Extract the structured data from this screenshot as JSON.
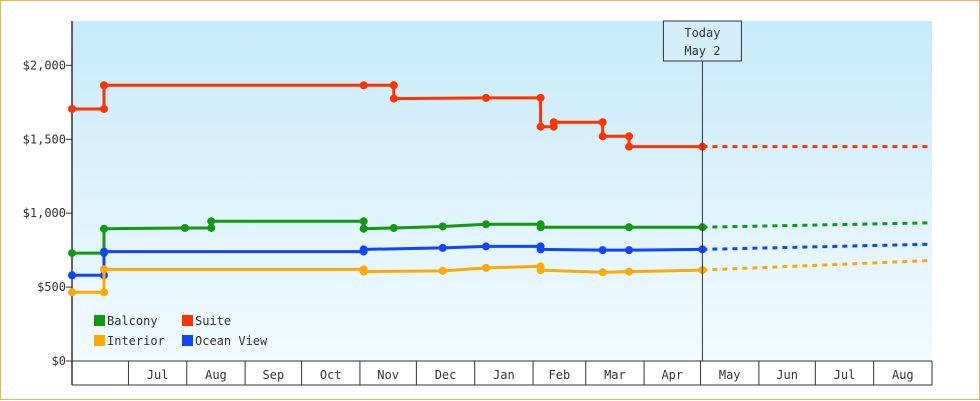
{
  "chart_data": {
    "type": "line",
    "step": true,
    "ylim": [
      0,
      2300
    ],
    "yticks": [
      {
        "value": 0,
        "label": "$0"
      },
      {
        "value": 500,
        "label": "$500"
      },
      {
        "value": 1000,
        "label": "$1,000"
      },
      {
        "value": 1500,
        "label": "$1,500"
      },
      {
        "value": 2000,
        "label": "$2,000"
      }
    ],
    "xlim": [
      "2024-06-01",
      "2025-09-01"
    ],
    "months": [
      {
        "label": "Jul",
        "start": "2024-07-01",
        "end": "2024-08-01"
      },
      {
        "label": "Aug",
        "start": "2024-08-01",
        "end": "2024-09-01"
      },
      {
        "label": "Sep",
        "start": "2024-09-01",
        "end": "2024-10-01"
      },
      {
        "label": "Oct",
        "start": "2024-10-01",
        "end": "2024-11-01"
      },
      {
        "label": "Nov",
        "start": "2024-11-01",
        "end": "2024-12-01"
      },
      {
        "label": "Dec",
        "start": "2024-12-01",
        "end": "2025-01-01"
      },
      {
        "label": "Jan",
        "start": "2025-01-01",
        "end": "2025-02-01"
      },
      {
        "label": "Feb",
        "start": "2025-02-01",
        "end": "2025-03-01"
      },
      {
        "label": "Mar",
        "start": "2025-03-01",
        "end": "2025-04-01"
      },
      {
        "label": "Apr",
        "start": "2025-04-01",
        "end": "2025-05-01"
      },
      {
        "label": "May",
        "start": "2025-05-01",
        "end": "2025-06-01"
      },
      {
        "label": "Jun",
        "start": "2025-06-01",
        "end": "2025-07-01"
      },
      {
        "label": "Jul",
        "start": "2025-07-01",
        "end": "2025-08-01"
      },
      {
        "label": "Aug",
        "start": "2025-08-01",
        "end": "2025-09-01"
      }
    ],
    "grid": false,
    "legend_position": "bottom-left",
    "today": {
      "line1": "Today",
      "line2": "May 2",
      "date": "2025-05-02"
    },
    "series": [
      {
        "name": "Suite",
        "color": "#ff3300",
        "points": [
          [
            "2024-06-01",
            1705
          ],
          [
            "2024-06-18",
            1705
          ],
          [
            "2024-06-18",
            1865
          ],
          [
            "2024-11-03",
            1865
          ],
          [
            "2024-11-19",
            1865
          ],
          [
            "2024-11-19",
            1775
          ],
          [
            "2025-01-07",
            1780
          ],
          [
            "2025-02-05",
            1780
          ],
          [
            "2025-02-05",
            1585
          ],
          [
            "2025-02-12",
            1585
          ],
          [
            "2025-02-12",
            1615
          ],
          [
            "2025-03-10",
            1615
          ],
          [
            "2025-03-10",
            1520
          ],
          [
            "2025-03-24",
            1520
          ],
          [
            "2025-03-24",
            1450
          ],
          [
            "2025-05-02",
            1450
          ]
        ],
        "forecast": [
          [
            "2025-05-02",
            1450
          ],
          [
            "2025-09-01",
            1450
          ]
        ]
      },
      {
        "name": "Balcony",
        "color": "#119911",
        "points": [
          [
            "2024-06-01",
            730
          ],
          [
            "2024-06-18",
            730
          ],
          [
            "2024-06-18",
            895
          ],
          [
            "2024-07-31",
            900
          ],
          [
            "2024-08-14",
            900
          ],
          [
            "2024-08-14",
            945
          ],
          [
            "2024-11-03",
            945
          ],
          [
            "2024-11-03",
            895
          ],
          [
            "2024-11-19",
            900
          ],
          [
            "2024-12-15",
            910
          ],
          [
            "2025-01-07",
            925
          ],
          [
            "2025-02-05",
            925
          ],
          [
            "2025-02-05",
            905
          ],
          [
            "2025-03-24",
            905
          ],
          [
            "2025-05-02",
            905
          ]
        ],
        "forecast": [
          [
            "2025-05-02",
            905
          ],
          [
            "2025-09-01",
            935
          ]
        ]
      },
      {
        "name": "Ocean View",
        "color": "#1144ff",
        "points": [
          [
            "2024-06-01",
            580
          ],
          [
            "2024-06-18",
            580
          ],
          [
            "2024-06-18",
            740
          ],
          [
            "2024-11-03",
            740
          ],
          [
            "2024-11-03",
            755
          ],
          [
            "2024-12-15",
            765
          ],
          [
            "2025-01-07",
            775
          ],
          [
            "2025-02-05",
            775
          ],
          [
            "2025-02-05",
            755
          ],
          [
            "2025-03-10",
            750
          ],
          [
            "2025-03-24",
            750
          ],
          [
            "2025-05-02",
            755
          ]
        ],
        "forecast": [
          [
            "2025-05-02",
            755
          ],
          [
            "2025-09-01",
            790
          ]
        ]
      },
      {
        "name": "Interior",
        "color": "#ffaa00",
        "points": [
          [
            "2024-06-01",
            465
          ],
          [
            "2024-06-18",
            465
          ],
          [
            "2024-06-18",
            620
          ],
          [
            "2024-11-03",
            620
          ],
          [
            "2024-11-03",
            605
          ],
          [
            "2024-12-15",
            610
          ],
          [
            "2025-01-07",
            630
          ],
          [
            "2025-02-05",
            640
          ],
          [
            "2025-02-05",
            615
          ],
          [
            "2025-03-10",
            600
          ],
          [
            "2025-03-24",
            605
          ],
          [
            "2025-05-02",
            615
          ]
        ],
        "forecast": [
          [
            "2025-05-02",
            615
          ],
          [
            "2025-09-01",
            680
          ]
        ]
      }
    ],
    "legend": [
      {
        "name": "Balcony",
        "color": "#119911"
      },
      {
        "name": "Suite",
        "color": "#ff3300"
      },
      {
        "name": "Interior",
        "color": "#ffaa00"
      },
      {
        "name": "Ocean View",
        "color": "#1144ff"
      }
    ]
  }
}
